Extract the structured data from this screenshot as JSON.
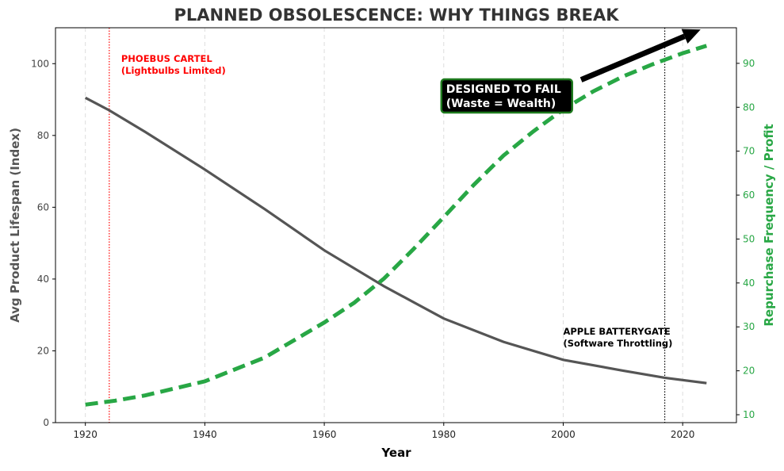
{
  "chart_data": {
    "type": "line",
    "title": "PLANNED OBSOLESCENCE: WHY THINGS BREAK",
    "xlabel": "Year",
    "ylabel": "Avg Product Lifespan (Index)",
    "ylabel_right": "Repurchase Frequency / Profit",
    "xlim": [
      1915,
      2029
    ],
    "ylim": [
      0,
      110
    ],
    "ylim_right": [
      8.2,
      98.1
    ],
    "xticks": [
      1920,
      1940,
      1960,
      1980,
      2000,
      2020
    ],
    "yticks": [
      0,
      20,
      40,
      60,
      80,
      100
    ],
    "yticks_right": [
      10,
      20,
      30,
      40,
      50,
      60,
      70,
      80,
      90
    ],
    "grid": "vertical dashed",
    "colors": {
      "lifespan": "#555555",
      "profit": "#28a745",
      "phoebus": "#ff0000",
      "title": "#333333"
    },
    "series": [
      {
        "axis": "left",
        "style": "solid",
        "color": "#555555",
        "x": [
          1920,
          1924,
          1930,
          1940,
          1950,
          1960,
          1970,
          1980,
          1990,
          2000,
          2010,
          2017,
          2024
        ],
        "y": [
          90.5,
          87,
          81,
          70.5,
          59.5,
          48,
          38,
          29,
          22.5,
          17.5,
          14.5,
          12.5,
          11
        ]
      },
      {
        "axis": "right",
        "style": "dashed",
        "color": "#28a745",
        "x": [
          1920,
          1925,
          1930,
          1940,
          1950,
          1960,
          1965,
          1970,
          1975,
          1980,
          1985,
          1990,
          1995,
          2000,
          2005,
          2010,
          2015,
          2020,
          2024
        ],
        "y": [
          12.3,
          13.2,
          14.4,
          17.6,
          23,
          31,
          35.5,
          41,
          47.8,
          55,
          62.3,
          69,
          74.5,
          79.5,
          83.6,
          87,
          89.8,
          92.3,
          94
        ]
      }
    ],
    "vlines": [
      {
        "x": 1924,
        "color": "#ff0000",
        "style": "dotted"
      },
      {
        "x": 2017,
        "color": "#000000",
        "style": "dotted"
      }
    ],
    "annotations": [
      {
        "lines": [
          "PHOEBUS CARTEL",
          "(Lightbulbs Limited)"
        ],
        "x": 1926,
        "y": 100.5,
        "color": "#ff0000"
      },
      {
        "lines": [
          "APPLE BATTERYGATE",
          "(Software Throttling)"
        ],
        "x": 2000,
        "y": 24.5,
        "color": "#000000"
      },
      {
        "lines": [
          "DESIGNED TO FAIL",
          "(Waste = Wealth)"
        ],
        "x": 1980,
        "y": 91,
        "color": "#ffffff",
        "box": "#000000",
        "border": "#1e7a1e",
        "arrow_from": [
          2003,
          95.5
        ],
        "arrow_to": [
          2023,
          109.5
        ]
      }
    ]
  }
}
